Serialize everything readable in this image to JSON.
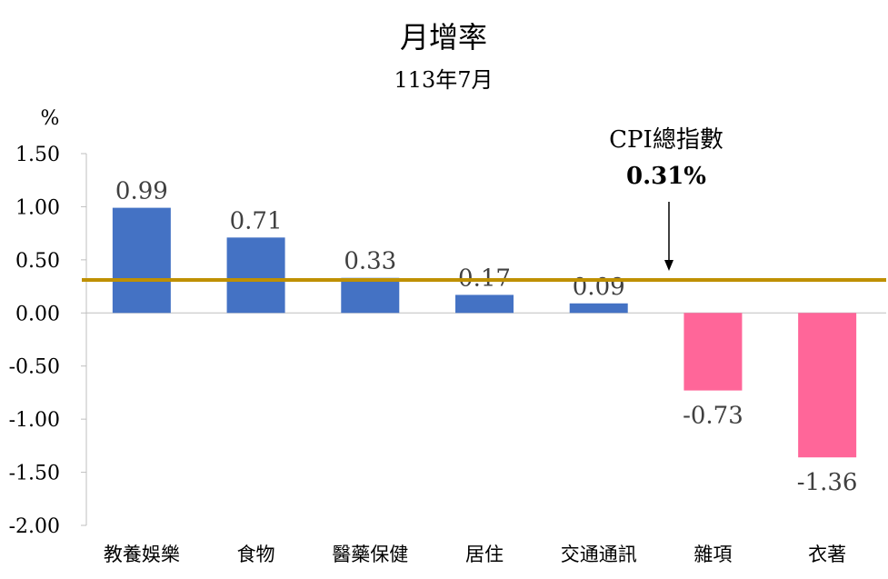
{
  "chart_data": {
    "type": "bar",
    "title": "月增率",
    "subtitle": "113年7月",
    "ylabel": "%",
    "ylim": [
      -2.0,
      1.5
    ],
    "yticks": [
      "1.50",
      "1.00",
      "0.50",
      "0.00",
      "-0.50",
      "-1.00",
      "-1.50",
      "-2.00"
    ],
    "categories": [
      "教養娛樂",
      "食物",
      "醫藥保健",
      "居住",
      "交通通訊",
      "雜項",
      "衣著"
    ],
    "values": [
      0.99,
      0.71,
      0.33,
      0.17,
      0.09,
      -0.73,
      -1.36
    ],
    "value_labels": [
      "0.99",
      "0.71",
      "0.33",
      "0.17",
      "0.09",
      "-0.73",
      "-1.36"
    ],
    "reference_line": {
      "label": "CPI總指數",
      "value_label": "0.31%",
      "value": 0.31,
      "color": "#BF9000"
    },
    "colors": {
      "positive": "#4472C4",
      "negative": "#FF6699"
    },
    "grid": false,
    "legend": "none"
  }
}
